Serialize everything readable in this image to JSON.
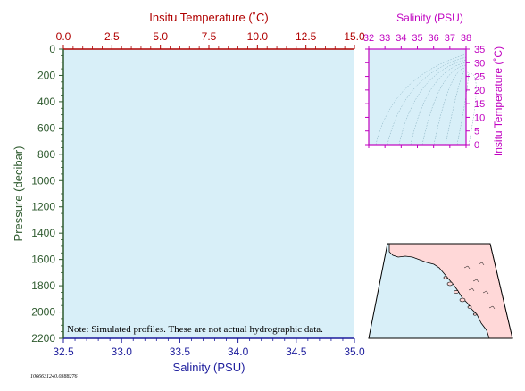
{
  "colors": {
    "water": "#d8eff8",
    "land": "#ffd8d8",
    "temperature_axis": "#b00000",
    "salinity_axis": "#1c1c9c",
    "pressure_axis": "#2e5a2e",
    "ts_axis": "#c000c0",
    "ts_contour": "#7aa7b8",
    "coast": "#000000"
  },
  "chart_data": [
    {
      "type": "line",
      "name": "profile",
      "note": "Note: Simulated profiles.  These are not actual hydrographic data.",
      "top_axis": {
        "label": "Insitu Temperature (˚C)",
        "range": [
          0.0,
          15.0
        ],
        "ticks": [
          "0.0",
          "2.5",
          "5.0",
          "7.5",
          "10.0",
          "12.5",
          "15.0"
        ]
      },
      "bottom_axis": {
        "label": "Salinity (PSU)",
        "range": [
          32.5,
          35.0
        ],
        "ticks": [
          "32.5",
          "33.0",
          "33.5",
          "34.0",
          "34.5",
          "35.0"
        ]
      },
      "left_axis": {
        "label": "Pressure (decibar)",
        "range": [
          0,
          2200
        ],
        "inverted": true,
        "ticks": [
          "0",
          "200",
          "400",
          "600",
          "800",
          "1000",
          "1200",
          "1400",
          "1600",
          "1800",
          "2000",
          "2200"
        ]
      },
      "series": []
    },
    {
      "type": "line",
      "name": "ts_diagram",
      "top_axis": {
        "label": "Salinity (PSU)",
        "range": [
          32,
          38
        ],
        "ticks": [
          "32",
          "33",
          "34",
          "35",
          "36",
          "37",
          "38"
        ]
      },
      "right_axis": {
        "label": "Insitu Temperature (˚C)",
        "range": [
          0,
          35
        ],
        "ticks": [
          "0",
          "5",
          "10",
          "15",
          "20",
          "25",
          "30",
          "35"
        ]
      },
      "series": []
    }
  ],
  "footer_id": "1066631240.0388276"
}
